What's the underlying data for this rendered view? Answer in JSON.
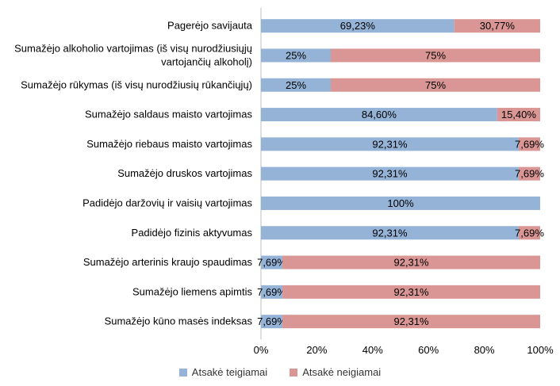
{
  "chart_data": {
    "type": "bar",
    "orientation": "horizontal",
    "stacked": "percent",
    "categories": [
      "Pagerėjo savijauta",
      "Sumažėjo alkoholio vartojimas (iš visų nurodžiusiųjų vartojančių alkoholį)",
      "Sumažėjo rūkymas (iš visų nurodžiusių rūkančiųjų)",
      "Sumažėjo saldaus maisto vartojimas",
      "Sumažėjo riebaus maisto vartojimas",
      "Sumažėjo druskos vartojimas",
      "Padidėjo daržovių ir vaisių vartojimas",
      "Padidėjo fizinis aktyvumas",
      "Sumažėjo arterinis kraujo spaudimas",
      "Sumažėjo liemens apimtis",
      "Sumažėjo kūno masės indeksas"
    ],
    "category_lines": [
      [
        "Pagerėjo savijauta"
      ],
      [
        "Sumažėjo alkoholio vartojimas (iš visų nurodžiusiųjų",
        "vartojančių alkoholį)"
      ],
      [
        "Sumažėjo rūkymas (iš visų nurodžiusių rūkančiųjų)"
      ],
      [
        "Sumažėjo saldaus maisto vartojimas"
      ],
      [
        "Sumažėjo riebaus maisto vartojimas"
      ],
      [
        "Sumažėjo druskos vartojimas"
      ],
      [
        "Padidėjo daržovių ir vaisių vartojimas"
      ],
      [
        "Padidėjo fizinis aktyvumas"
      ],
      [
        "Sumažėjo arterinis kraujo spaudimas"
      ],
      [
        "Sumažėjo liemens apimtis"
      ],
      [
        "Sumažėjo kūno masės indeksas"
      ]
    ],
    "series": [
      {
        "name": "Atsakė teigiamai",
        "color": "#95B3D7",
        "values": [
          69.23,
          25,
          25,
          84.6,
          92.31,
          92.31,
          100,
          92.31,
          7.69,
          7.69,
          7.69
        ],
        "labels": [
          "69,23%",
          "25%",
          "25%",
          "84,60%",
          "92,31%",
          "92,31%",
          "100%",
          "92,31%",
          "7,69%",
          "7,69%",
          "7,69%"
        ]
      },
      {
        "name": "Atsakė neigiamai",
        "color": "#D99694",
        "values": [
          30.77,
          75,
          75,
          15.4,
          7.69,
          7.69,
          0,
          7.69,
          92.31,
          92.31,
          92.31
        ],
        "labels": [
          "30,77%",
          "75%",
          "75%",
          "15,40%",
          "7,69%",
          "7,69%",
          "",
          "7,69%",
          "92,31%",
          "92,31%",
          "92,31%"
        ]
      }
    ],
    "xlim": [
      0,
      100
    ],
    "x_ticks": [
      0,
      20,
      40,
      60,
      80,
      100
    ],
    "x_tick_labels": [
      "0%",
      "20%",
      "40%",
      "60%",
      "80%",
      "100%"
    ],
    "grid": false,
    "legend": {
      "placement": "bottom",
      "entries": [
        "Atsakė teigiamai",
        "Atsakė neigiamai"
      ]
    },
    "title": "",
    "xlabel": "",
    "ylabel": ""
  }
}
